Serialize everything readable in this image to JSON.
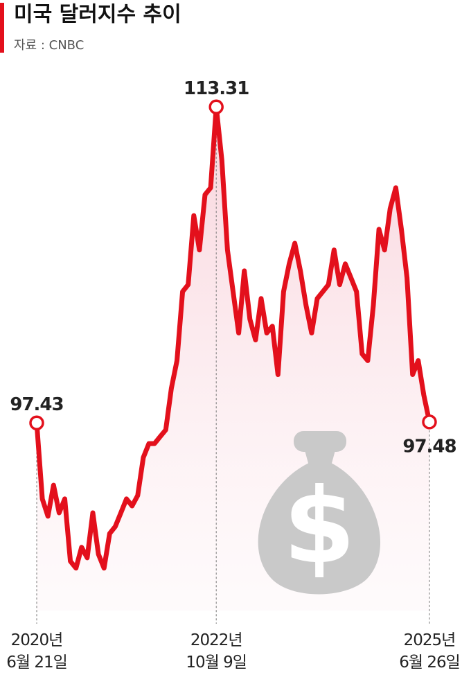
{
  "chart_data": {
    "type": "line",
    "title": "미국 달러지수 추이",
    "subtitle": "자료 : CNBC",
    "categories": [
      "2020년\n6월 21일",
      null,
      null,
      null,
      null,
      null,
      null,
      null,
      null,
      null,
      null,
      null,
      null,
      null,
      null,
      null,
      null,
      null,
      null,
      null,
      null,
      null,
      null,
      null,
      null,
      null,
      null,
      null,
      null,
      null,
      null,
      null,
      "2022년\n10월 9일",
      null,
      null,
      null,
      null,
      null,
      null,
      null,
      null,
      null,
      null,
      null,
      null,
      null,
      null,
      null,
      null,
      null,
      null,
      null,
      null,
      null,
      null,
      null,
      null,
      null,
      null,
      null,
      null,
      null,
      null,
      null,
      null,
      null,
      null,
      null,
      null,
      null,
      "2025년\n6월 26일"
    ],
    "values": [
      97.43,
      93.61,
      92.74,
      94.3,
      92.91,
      93.61,
      90.48,
      90.13,
      91.18,
      90.65,
      92.91,
      90.83,
      90.13,
      91.87,
      92.22,
      92.91,
      93.61,
      93.26,
      93.78,
      95.69,
      96.39,
      96.39,
      96.74,
      97.08,
      99.17,
      100.56,
      104.03,
      104.38,
      107.85,
      106.12,
      108.9,
      109.25,
      113.31,
      110.63,
      106.12,
      104.03,
      101.95,
      105.07,
      102.64,
      101.6,
      103.68,
      101.95,
      102.29,
      99.86,
      104.03,
      105.42,
      106.46,
      105.07,
      103.34,
      101.95,
      103.68,
      104.03,
      104.38,
      106.12,
      104.38,
      105.42,
      104.73,
      104.03,
      100.9,
      100.56,
      103.34,
      107.16,
      106.12,
      108.2,
      109.25,
      107.16,
      104.73,
      99.86,
      100.56,
      98.82,
      97.48
    ],
    "color": "#e3101c",
    "ylim": [
      88,
      114
    ]
  }
}
